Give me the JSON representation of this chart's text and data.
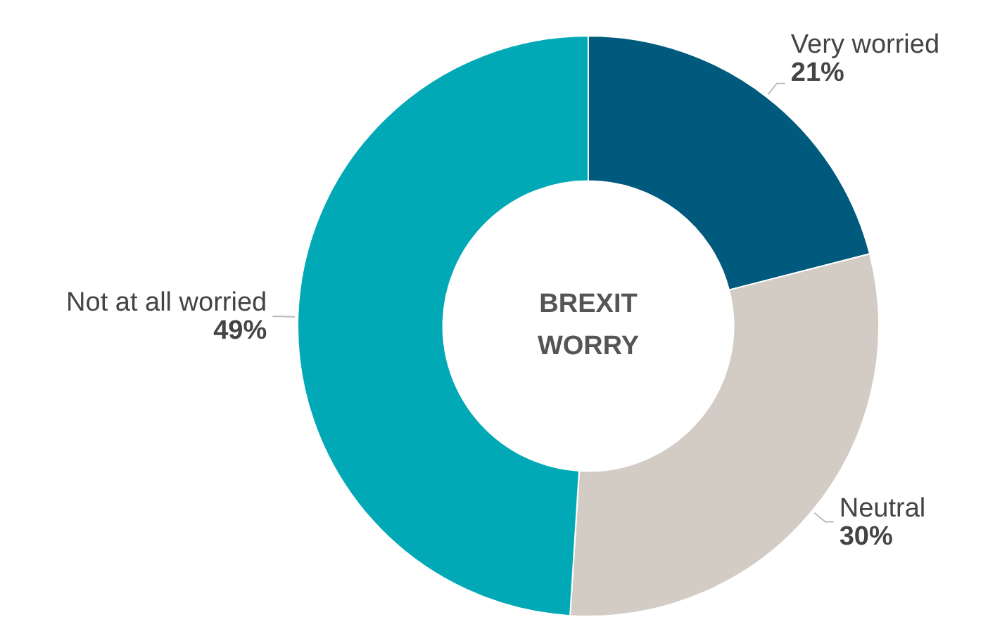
{
  "chart_data": {
    "type": "donut",
    "title": "BREXIT WORRY",
    "categories": [
      "Very worried",
      "Neutral",
      "Not at all worried"
    ],
    "values": [
      21,
      30,
      49
    ],
    "value_labels": [
      "21%",
      "30%",
      "49%"
    ],
    "colors": [
      "#005a7d",
      "#d3ccc5",
      "#00a9b5"
    ],
    "legend": false
  }
}
